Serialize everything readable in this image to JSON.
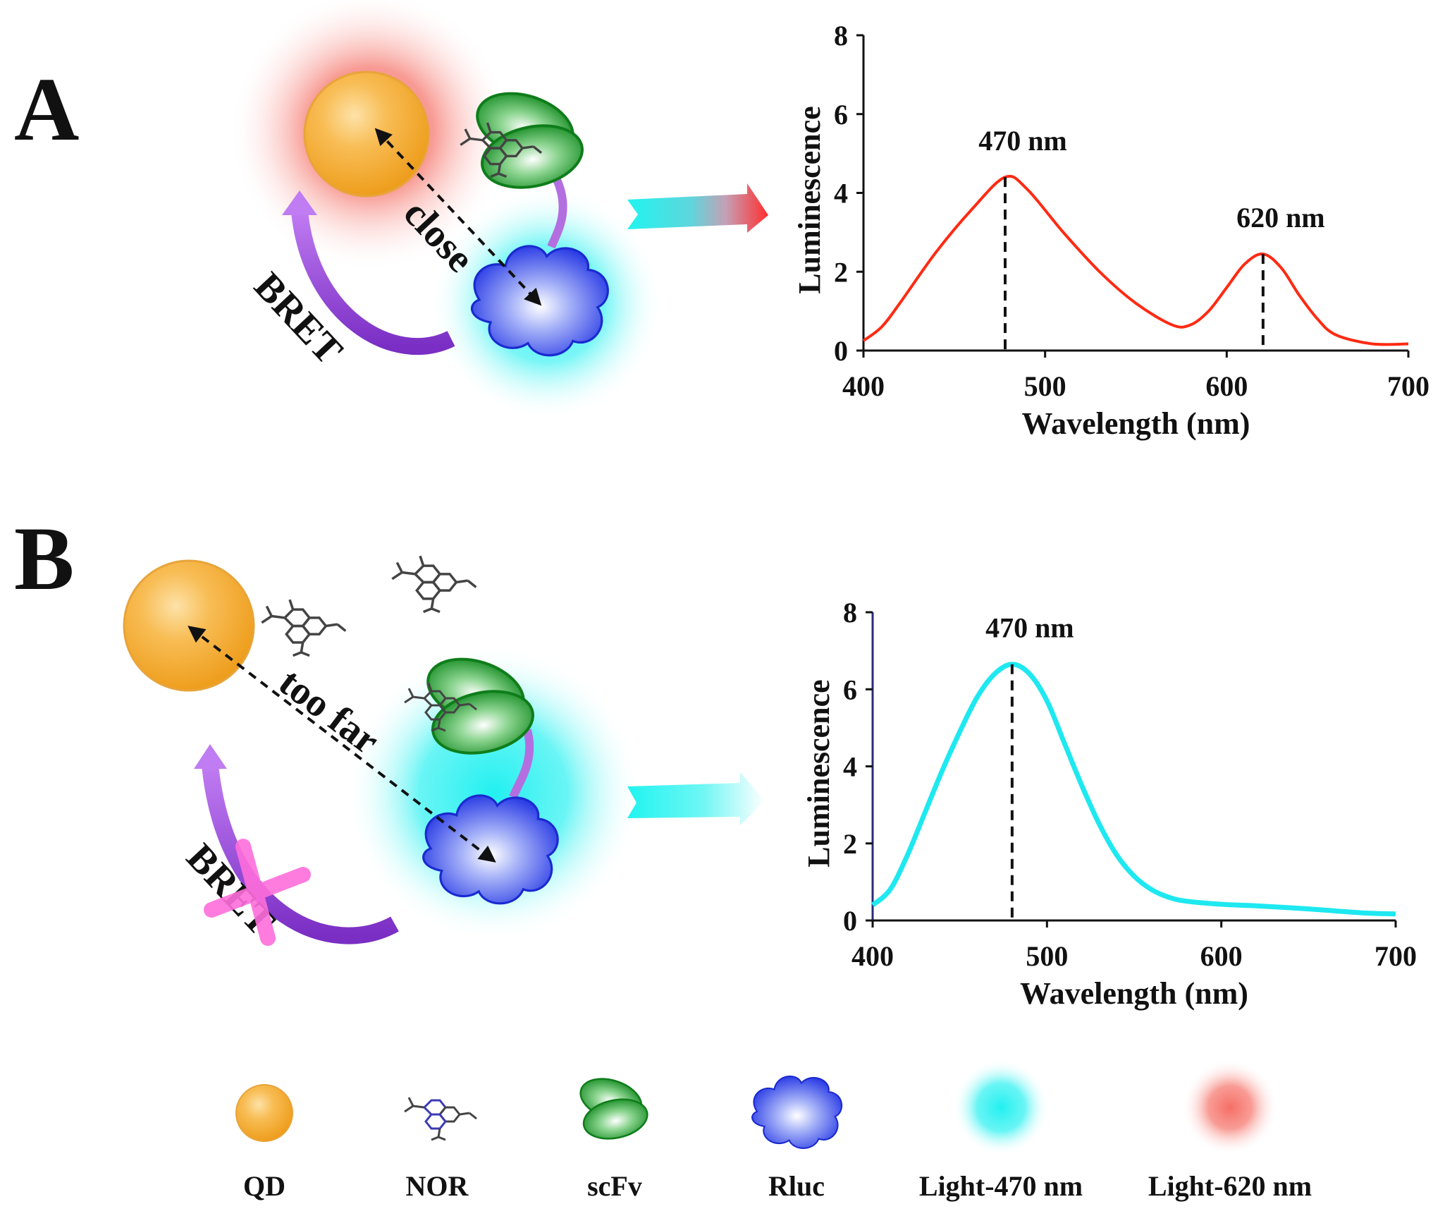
{
  "panels": [
    {
      "letter": "A",
      "distance_label": "close",
      "bret_label": "BRET"
    },
    {
      "letter": "B",
      "distance_label": "too far",
      "bret_label": "BRET"
    }
  ],
  "chart_data": [
    {
      "type": "line",
      "xlabel": "Wavelength (nm)",
      "ylabel": "Luminescence",
      "xlim": [
        400,
        700
      ],
      "ylim": [
        0,
        8
      ],
      "x_ticks": [
        "400",
        "500",
        "600",
        "700"
      ],
      "y_ticks": [
        "0",
        "2",
        "4",
        "6",
        "8"
      ],
      "grid": false,
      "series": [
        {
          "color": "#ff2a12",
          "x": [
            400,
            410,
            420,
            440,
            460,
            478,
            490,
            510,
            530,
            550,
            570,
            580,
            590,
            600,
            610,
            620,
            630,
            640,
            650,
            660,
            680,
            700
          ],
          "y": [
            0.25,
            0.6,
            1.2,
            2.5,
            3.6,
            4.4,
            4.1,
            3.0,
            2.0,
            1.2,
            0.65,
            0.65,
            1.0,
            1.6,
            2.2,
            2.45,
            2.1,
            1.4,
            0.8,
            0.4,
            0.17,
            0.17
          ]
        }
      ],
      "annotations": [
        {
          "label": "470 nm",
          "x": 478,
          "y": 4.4
        },
        {
          "label": "620 nm",
          "x": 620,
          "y": 2.45
        }
      ]
    },
    {
      "type": "line",
      "xlabel": "Wavelength (nm)",
      "ylabel": "Luminescence",
      "xlim": [
        400,
        700
      ],
      "ylim": [
        0,
        8
      ],
      "x_ticks": [
        "400",
        "500",
        "600",
        "700"
      ],
      "y_ticks": [
        "0",
        "2",
        "4",
        "6",
        "8"
      ],
      "grid": false,
      "series": [
        {
          "color": "#1ee8f0",
          "x": [
            400,
            410,
            420,
            430,
            440,
            450,
            460,
            470,
            480,
            490,
            500,
            510,
            520,
            530,
            540,
            550,
            560,
            570,
            580,
            600,
            620,
            650,
            680,
            700
          ],
          "y": [
            0.4,
            0.8,
            1.7,
            2.8,
            3.9,
            4.9,
            5.8,
            6.4,
            6.65,
            6.4,
            5.7,
            4.6,
            3.5,
            2.5,
            1.7,
            1.15,
            0.8,
            0.6,
            0.5,
            0.42,
            0.38,
            0.3,
            0.2,
            0.17
          ]
        }
      ],
      "annotations": [
        {
          "label": "470 nm",
          "x": 480,
          "y": 6.65
        }
      ]
    }
  ],
  "legend": [
    {
      "label": "QD",
      "icon": "qd-sphere-icon"
    },
    {
      "label": "NOR",
      "icon": "nor-molecule-icon"
    },
    {
      "label": "scFv",
      "icon": "scfv-antibody-icon"
    },
    {
      "label": "Rluc",
      "icon": "rluc-enzyme-icon"
    },
    {
      "label": "Light-470 nm",
      "icon": "cyan-glow-icon"
    },
    {
      "label": "Light-620 nm",
      "icon": "red-glow-icon"
    }
  ],
  "colors": {
    "qd": "#f6b23c",
    "scfv": "#1f9e2a",
    "rluc": "#2f3fe0",
    "glow_470": "#23f0f0",
    "glow_620": "#f56f66",
    "bret_arrow": "#9b3fd8",
    "cross": "#ff6edc"
  }
}
